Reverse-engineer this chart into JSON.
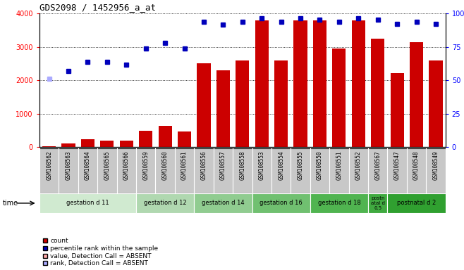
{
  "title": "GDS2098 / 1452956_a_at",
  "samples": [
    "GSM108562",
    "GSM108563",
    "GSM108564",
    "GSM108565",
    "GSM108566",
    "GSM108559",
    "GSM108560",
    "GSM108561",
    "GSM108556",
    "GSM108557",
    "GSM108558",
    "GSM108553",
    "GSM108554",
    "GSM108555",
    "GSM108550",
    "GSM108551",
    "GSM108552",
    "GSM108567",
    "GSM108547",
    "GSM108548",
    "GSM108549"
  ],
  "bar_values": [
    30,
    120,
    240,
    200,
    200,
    480,
    640,
    460,
    2500,
    2300,
    2600,
    3800,
    2600,
    3800,
    3800,
    2960,
    3800,
    3250,
    2220,
    3150,
    2600
  ],
  "dot_values": [
    2050,
    2280,
    2560,
    2560,
    2460,
    2950,
    3110,
    2960,
    3760,
    3660,
    3760,
    3860,
    3760,
    3860,
    3820,
    3760,
    3860,
    3820,
    3680,
    3760,
    3680
  ],
  "absent_bar": [
    0,
    0,
    0,
    0,
    0,
    0,
    0,
    0,
    0,
    0,
    0,
    0,
    0,
    0,
    0,
    0,
    0,
    0,
    0,
    0,
    0
  ],
  "absent_dot": [
    1,
    0,
    0,
    0,
    0,
    0,
    0,
    0,
    0,
    0,
    0,
    0,
    0,
    0,
    0,
    0,
    0,
    0,
    0,
    0,
    0
  ],
  "groups": [
    {
      "label": "gestation d 11",
      "start": 0,
      "end": 4,
      "color": "#d0ead0"
    },
    {
      "label": "gestation d 12",
      "start": 5,
      "end": 7,
      "color": "#b0d8b0"
    },
    {
      "label": "gestation d 14",
      "start": 8,
      "end": 10,
      "color": "#90cc90"
    },
    {
      "label": "gestation d 16",
      "start": 11,
      "end": 13,
      "color": "#70c070"
    },
    {
      "label": "gestation d 18",
      "start": 14,
      "end": 16,
      "color": "#50b450"
    },
    {
      "label": "postn\natal d\n0.5",
      "start": 17,
      "end": 17,
      "color": "#40aa40"
    },
    {
      "label": "postnatal d 2",
      "start": 18,
      "end": 20,
      "color": "#30a030"
    }
  ],
  "bar_color": "#cc0000",
  "dot_color": "#0000bb",
  "absent_bar_color": "#ffaaaa",
  "absent_dot_color": "#aaaaff",
  "ylim_left": [
    0,
    4000
  ],
  "ylim_right": [
    0,
    100
  ],
  "yticks_left": [
    0,
    1000,
    2000,
    3000,
    4000
  ],
  "yticks_right": [
    0,
    25,
    50,
    75,
    100
  ],
  "ytick_labels_right": [
    "0",
    "25",
    "50",
    "75",
    "100%"
  ],
  "plot_bg_color": "#ffffff"
}
